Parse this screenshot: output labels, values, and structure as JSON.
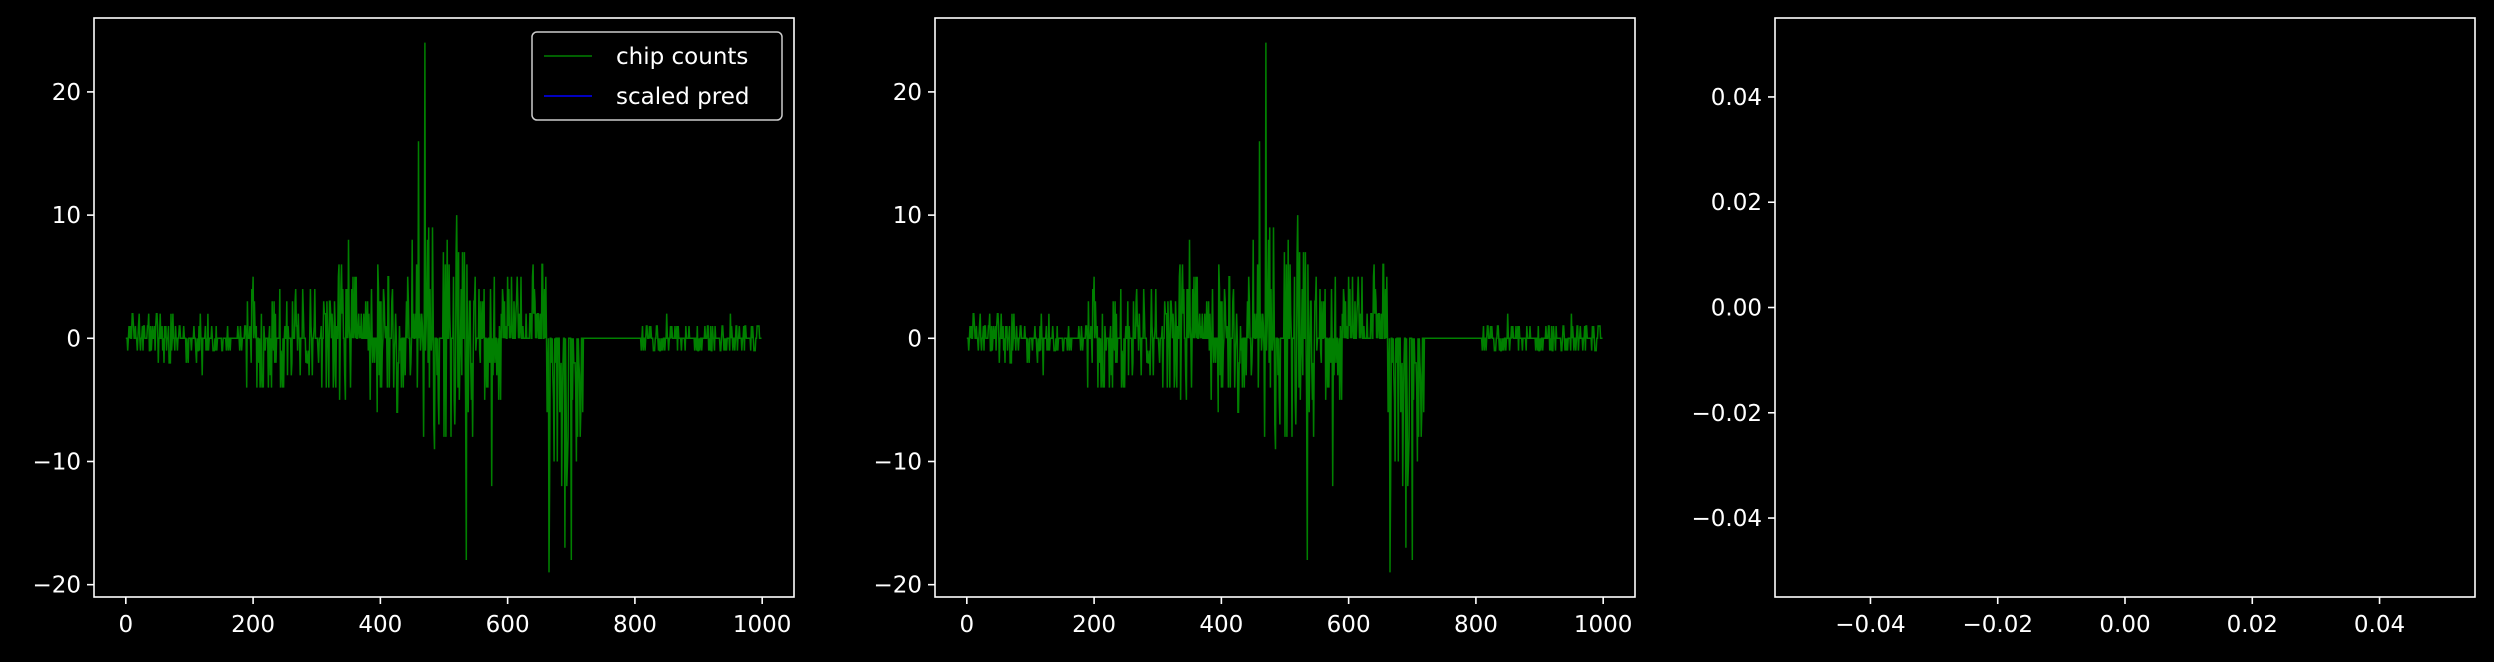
{
  "colors": {
    "background": "#000000",
    "axes": "#ffffff",
    "chip_counts": "#008000",
    "scaled_pred": "#0000ff"
  },
  "chart_data": [
    {
      "type": "line",
      "panel": "left",
      "xlim": [
        -50,
        1050
      ],
      "ylim": [
        -21,
        26
      ],
      "xticks": [
        0,
        200,
        400,
        600,
        800,
        1000
      ],
      "yticks": [
        -20,
        -10,
        0,
        10,
        20
      ],
      "legend": {
        "placement": "top-right",
        "entries": [
          "chip counts",
          "scaled pred"
        ]
      },
      "series": [
        {
          "name": "chip counts",
          "color": "#008000",
          "x_range": [
            0,
            999
          ],
          "envelope_description": "spiky count differences around 0",
          "key_points": [
            [
              0,
              0
            ],
            [
              20,
              1
            ],
            [
              60,
              -2
            ],
            [
              120,
              -3
            ],
            [
              200,
              5
            ],
            [
              260,
              -3
            ],
            [
              350,
              8
            ],
            [
              400,
              -4
            ],
            [
              460,
              16
            ],
            [
              470,
              24
            ],
            [
              500,
              -8
            ],
            [
              520,
              10
            ],
            [
              535,
              -18
            ],
            [
              575,
              -12
            ],
            [
              600,
              5
            ],
            [
              640,
              6
            ],
            [
              660,
              5
            ],
            [
              665,
              -19
            ],
            [
              690,
              -17
            ],
            [
              700,
              -18
            ],
            [
              720,
              0
            ],
            [
              800,
              0
            ],
            [
              850,
              2
            ],
            [
              900,
              -1
            ],
            [
              950,
              2
            ],
            [
              999,
              0
            ]
          ]
        },
        {
          "name": "scaled pred",
          "color": "#0000ff",
          "points": []
        }
      ]
    },
    {
      "type": "line",
      "panel": "middle",
      "xlim": [
        -50,
        1050
      ],
      "ylim": [
        -21,
        26
      ],
      "xticks": [
        0,
        200,
        400,
        600,
        800,
        1000
      ],
      "yticks": [
        -20,
        -10,
        0,
        10,
        20
      ],
      "series": [
        {
          "color": "#008000",
          "x_range": [
            0,
            999
          ],
          "key_points": [
            [
              0,
              0
            ],
            [
              20,
              1
            ],
            [
              60,
              -2
            ],
            [
              120,
              -3
            ],
            [
              200,
              5
            ],
            [
              260,
              -3
            ],
            [
              350,
              8
            ],
            [
              400,
              -4
            ],
            [
              460,
              16
            ],
            [
              470,
              24
            ],
            [
              500,
              -8
            ],
            [
              520,
              10
            ],
            [
              535,
              -18
            ],
            [
              575,
              -12
            ],
            [
              600,
              5
            ],
            [
              640,
              6
            ],
            [
              660,
              5
            ],
            [
              665,
              -19
            ],
            [
              690,
              -17
            ],
            [
              700,
              -18
            ],
            [
              720,
              0
            ],
            [
              800,
              0
            ],
            [
              850,
              2
            ],
            [
              900,
              -1
            ],
            [
              950,
              2
            ],
            [
              999,
              0
            ]
          ]
        }
      ]
    },
    {
      "type": "line",
      "panel": "right",
      "xlim": [
        -0.055,
        0.055
      ],
      "ylim": [
        -0.055,
        0.055
      ],
      "xticks": [
        -0.04,
        -0.02,
        0.0,
        0.02,
        0.04
      ],
      "yticks": [
        -0.04,
        -0.02,
        0.0,
        0.02,
        0.04
      ],
      "xtick_labels": [
        "−0.04",
        "−0.02",
        "0.00",
        "0.02",
        "0.04"
      ],
      "ytick_labels": [
        "−0.04",
        "−0.02",
        "0.00",
        "0.02",
        "0.04"
      ],
      "series": []
    }
  ]
}
